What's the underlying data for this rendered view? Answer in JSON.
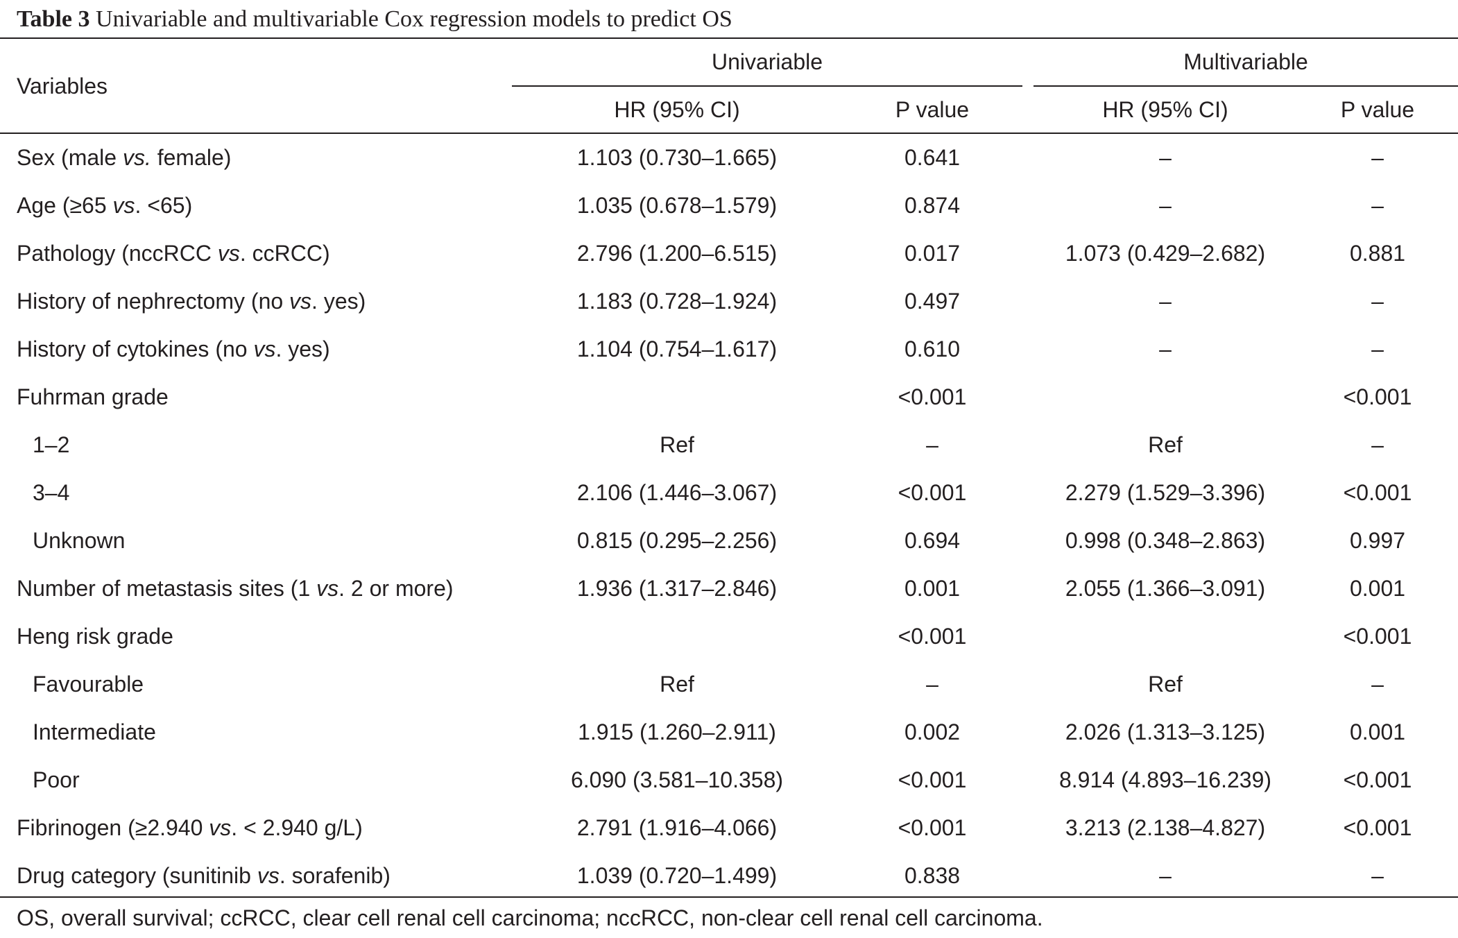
{
  "caption": {
    "label": "Table 3",
    "title": "Univariable and multivariable Cox regression models to predict OS"
  },
  "header": {
    "variables": "Variables",
    "group_univariable": "Univariable",
    "group_multivariable": "Multivariable",
    "columns": [
      "HR (95% CI)",
      "P value",
      "HR (95% CI)",
      "P value"
    ]
  },
  "rows": [
    {
      "pre": "Sex (male ",
      "em": "vs.",
      "post": " female)",
      "cells": [
        "1.103 (0.730–1.665)",
        "0.641",
        "–",
        "–"
      ]
    },
    {
      "pre": "Age (≥65 ",
      "em": "vs",
      "post": ". <65)",
      "cells": [
        "1.035 (0.678–1.579)",
        "0.874",
        "–",
        "–"
      ]
    },
    {
      "pre": "Pathology (nccRCC ",
      "em": "vs",
      "post": ". ccRCC)",
      "cells": [
        "2.796 (1.200–6.515)",
        "0.017",
        "1.073 (0.429–2.682)",
        "0.881"
      ]
    },
    {
      "pre": "History of nephrectomy (no ",
      "em": "vs",
      "post": ". yes)",
      "cells": [
        "1.183 (0.728–1.924)",
        "0.497",
        "–",
        "–"
      ]
    },
    {
      "pre": "History of cytokines (no ",
      "em": "vs",
      "post": ". yes)",
      "cells": [
        "1.104 (0.754–1.617)",
        "0.610",
        "–",
        "–"
      ]
    },
    {
      "pre": "Fuhrman grade",
      "em": "",
      "post": "",
      "cells": [
        "",
        "<0.001",
        "",
        "<0.001"
      ]
    },
    {
      "pre": "1–2",
      "em": "",
      "post": "",
      "cells": [
        "Ref",
        "–",
        "Ref",
        "–"
      ]
    },
    {
      "pre": "3–4",
      "em": "",
      "post": "",
      "cells": [
        "2.106 (1.446–3.067)",
        "<0.001",
        "2.279 (1.529–3.396)",
        "<0.001"
      ]
    },
    {
      "pre": "Unknown",
      "em": "",
      "post": "",
      "cells": [
        "0.815 (0.295–2.256)",
        "0.694",
        "0.998 (0.348–2.863)",
        "0.997"
      ]
    },
    {
      "pre": "Number of metastasis sites (1 ",
      "em": "vs",
      "post": ". 2 or more)",
      "cells": [
        "1.936 (1.317–2.846)",
        "0.001",
        "2.055 (1.366–3.091)",
        "0.001"
      ]
    },
    {
      "pre": "Heng risk grade",
      "em": "",
      "post": "",
      "cells": [
        "",
        "<0.001",
        "",
        "<0.001"
      ]
    },
    {
      "pre": "Favourable",
      "em": "",
      "post": "",
      "cells": [
        "Ref",
        "–",
        "Ref",
        "–"
      ]
    },
    {
      "pre": "Intermediate",
      "em": "",
      "post": "",
      "cells": [
        "1.915 (1.260–2.911)",
        "0.002",
        "2.026 (1.313–3.125)",
        "0.001"
      ]
    },
    {
      "pre": "Poor",
      "em": "",
      "post": "",
      "cells": [
        "6.090 (3.581–10.358)",
        "<0.001",
        "8.914 (4.893–16.239)",
        "<0.001"
      ]
    },
    {
      "pre": "Fibrinogen (≥2.940 ",
      "em": "vs",
      "post": ". < 2.940 g/L)",
      "cells": [
        "2.791 (1.916–4.066)",
        "<0.001",
        "3.213 (2.138–4.827)",
        "<0.001"
      ]
    },
    {
      "pre": "Drug category (sunitinib ",
      "em": "vs",
      "post": ". sorafenib)",
      "cells": [
        "1.039 (0.720–1.499)",
        "0.838",
        "–",
        "–"
      ]
    }
  ],
  "footnote": "OS, overall survival; ccRCC, clear cell renal cell carcinoma; nccRCC, non-clear cell renal cell carcinoma."
}
